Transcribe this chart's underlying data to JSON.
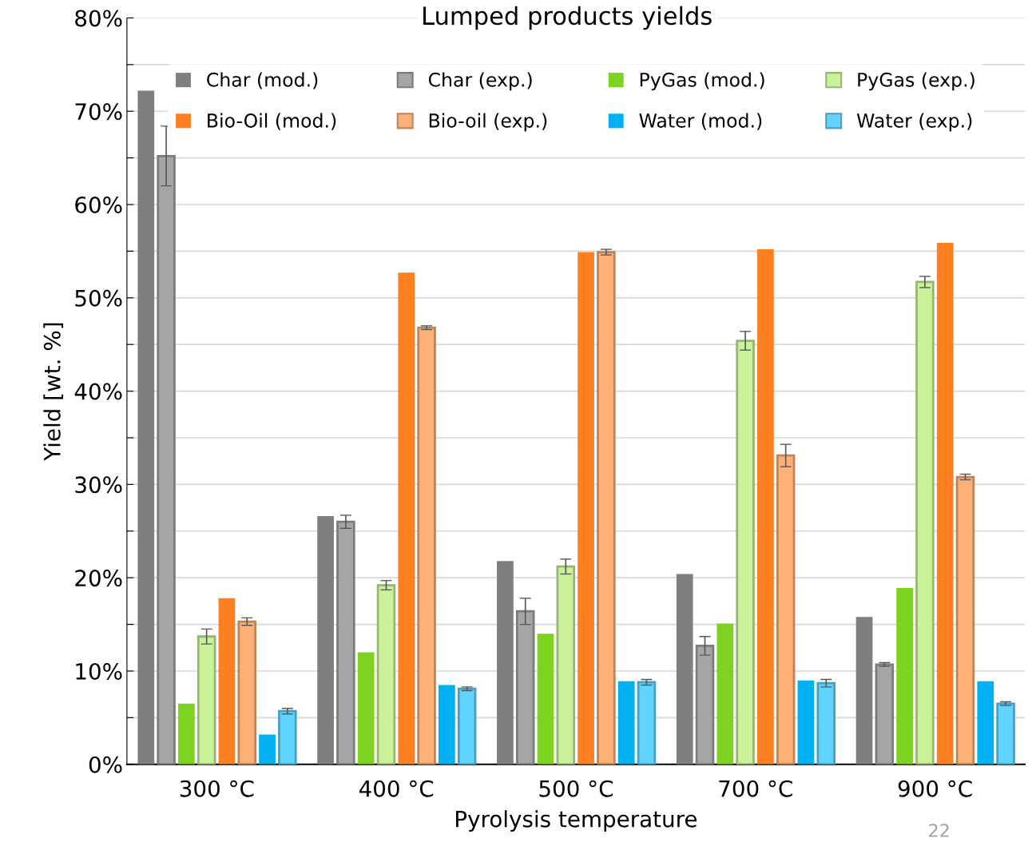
{
  "chart_data": {
    "type": "bar",
    "title": "Lumped products yields",
    "xlabel": "Pyrolysis temperature",
    "ylabel": "Yield [wt. %]",
    "categories": [
      "300 °C",
      "400 °C",
      "500 °C",
      "700 °C",
      "900 °C"
    ],
    "series": [
      {
        "name": "Char (mod.)",
        "color": "#7f7f7f",
        "values": [
          72.2,
          26.6,
          21.8,
          20.4,
          15.8
        ]
      },
      {
        "name": "Char (exp.)",
        "color": "#a5a5a5",
        "values": [
          65.2,
          26.0,
          16.4,
          12.7,
          10.7
        ],
        "errors": [
          3.2,
          0.7,
          1.4,
          1.0,
          0.2
        ]
      },
      {
        "name": "PyGas (mod.)",
        "color": "#7ed321",
        "values": [
          6.5,
          12.0,
          14.0,
          15.1,
          18.9
        ]
      },
      {
        "name": "PyGas (exp.)",
        "color": "#c9f299",
        "values": [
          13.7,
          19.2,
          21.2,
          45.4,
          51.7
        ],
        "errors": [
          0.8,
          0.5,
          0.8,
          1.0,
          0.6
        ]
      },
      {
        "name": "Bio-Oil (mod.)",
        "color": "#ff8021",
        "values": [
          17.8,
          52.7,
          54.9,
          55.2,
          55.9
        ]
      },
      {
        "name": "Bio-oil (exp.)",
        "color": "#ffb077",
        "values": [
          15.3,
          46.8,
          54.9,
          33.1,
          30.8
        ],
        "errors": [
          0.4,
          0.2,
          0.3,
          1.2,
          0.3
        ]
      },
      {
        "name": "Water (mod.)",
        "color": "#00b0f0",
        "values": [
          3.2,
          8.5,
          8.9,
          9.0,
          8.9
        ]
      },
      {
        "name": "Water (exp.)",
        "color": "#61d4ff",
        "values": [
          5.7,
          8.1,
          8.8,
          8.7,
          6.5
        ],
        "errors": [
          0.3,
          0.2,
          0.3,
          0.4,
          0.2
        ]
      }
    ],
    "ylim": [
      0,
      80
    ],
    "yticks": [
      {
        "value": 0,
        "label": "0%"
      },
      {
        "value": 5,
        "label": null
      },
      {
        "value": 10,
        "label": "10%"
      },
      {
        "value": 15,
        "label": null
      },
      {
        "value": 20,
        "label": "20%"
      },
      {
        "value": 25,
        "label": null
      },
      {
        "value": 30,
        "label": "30%"
      },
      {
        "value": 35,
        "label": null
      },
      {
        "value": 40,
        "label": "40%"
      },
      {
        "value": 45,
        "label": null
      },
      {
        "value": 50,
        "label": "50%"
      },
      {
        "value": 55,
        "label": null
      },
      {
        "value": 60,
        "label": "60%"
      },
      {
        "value": 65,
        "label": null
      },
      {
        "value": 70,
        "label": "70%"
      },
      {
        "value": 75,
        "label": null
      },
      {
        "value": 80,
        "label": "80%"
      }
    ],
    "grid": "y",
    "legend": "top",
    "annotations": [
      "22"
    ]
  }
}
